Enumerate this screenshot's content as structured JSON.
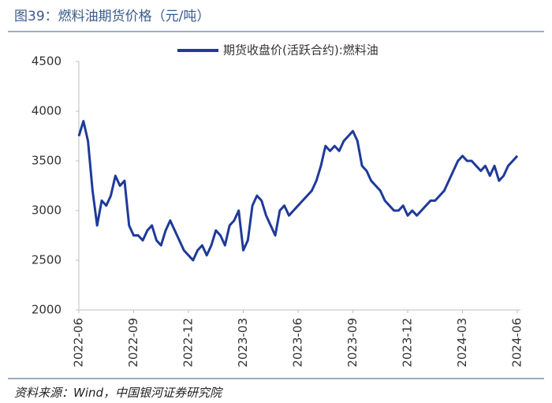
{
  "chart_data": {
    "type": "line",
    "title": "图39：燃料油期货价格（元/吨）",
    "source": "资料来源：Wind，中国银河证券研究院",
    "categories": [
      "2022-06",
      null,
      null,
      null,
      null,
      null,
      null,
      null,
      null,
      null,
      null,
      null,
      "2022-09",
      null,
      null,
      null,
      null,
      null,
      null,
      null,
      null,
      null,
      null,
      null,
      "2022-12",
      null,
      null,
      null,
      null,
      null,
      null,
      null,
      null,
      null,
      null,
      null,
      "2023-03",
      null,
      null,
      null,
      null,
      null,
      null,
      null,
      null,
      null,
      null,
      null,
      "2023-06",
      null,
      null,
      null,
      null,
      null,
      null,
      null,
      null,
      null,
      null,
      null,
      "2023-09",
      null,
      null,
      null,
      null,
      null,
      null,
      null,
      null,
      null,
      null,
      null,
      "2023-12",
      null,
      null,
      null,
      null,
      null,
      null,
      null,
      null,
      null,
      null,
      null,
      "2024-03",
      null,
      null,
      null,
      null,
      null,
      null,
      null,
      null,
      null,
      null,
      null,
      "2024-06"
    ],
    "series": [
      {
        "name": "期货收盘价(活跃合约):燃料油",
        "color": "#1f3a9a",
        "values": [
          3750,
          3900,
          3700,
          3200,
          2850,
          3100,
          3050,
          3150,
          3350,
          3250,
          3300,
          2850,
          2750,
          2750,
          2700,
          2800,
          2850,
          2700,
          2650,
          2800,
          2900,
          2800,
          2700,
          2600,
          2550,
          2500,
          2600,
          2650,
          2550,
          2650,
          2800,
          2750,
          2650,
          2850,
          2900,
          3000,
          2600,
          2700,
          3050,
          3150,
          3100,
          2950,
          2850,
          2750,
          3000,
          3050,
          2950,
          3000,
          3050,
          3100,
          3150,
          3200,
          3300,
          3450,
          3650,
          3600,
          3650,
          3600,
          3700,
          3750,
          3800,
          3700,
          3450,
          3400,
          3300,
          3250,
          3200,
          3100,
          3050,
          3000,
          3000,
          3050,
          2950,
          3000,
          2950,
          3000,
          3050,
          3100,
          3100,
          3150,
          3200,
          3300,
          3400,
          3500,
          3550,
          3500,
          3500,
          3450,
          3400,
          3450,
          3350,
          3450,
          3300,
          3350,
          3450,
          3500,
          3550
        ]
      }
    ],
    "ylim": [
      2000,
      4500
    ],
    "yticks": [
      2000,
      2500,
      3000,
      3500,
      4000,
      4500
    ],
    "grid": false,
    "legend": "top"
  }
}
